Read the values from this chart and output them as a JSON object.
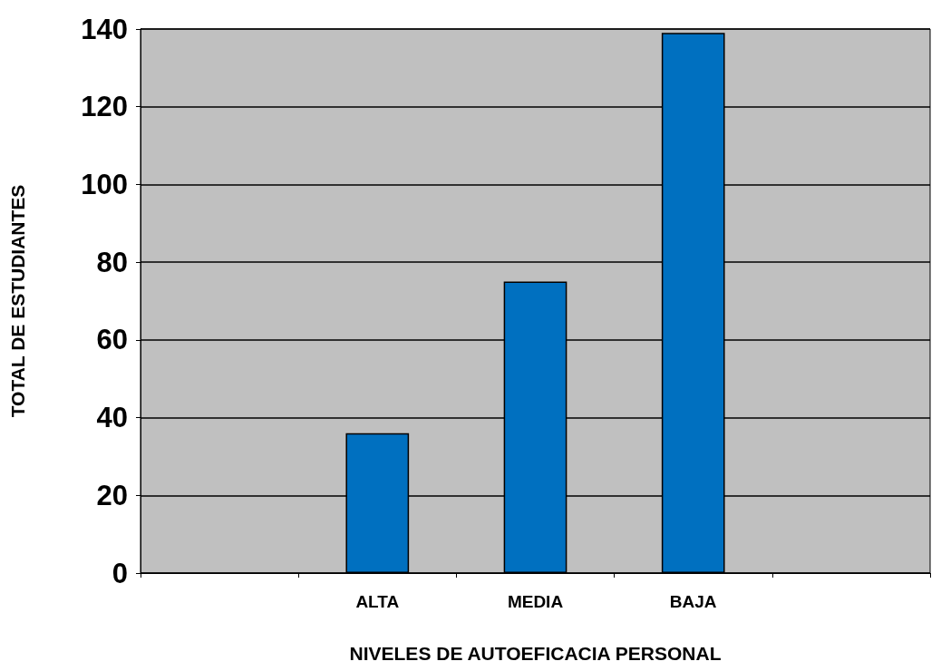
{
  "chart_data": {
    "type": "bar",
    "xlabel": "NIVELES DE AUTOEFICACIA PERSONAL",
    "ylabel": "TOTAL DE ESTUDIANTES",
    "categories": [
      null,
      "ALTA",
      "MEDIA",
      "BAJA",
      null
    ],
    "values": [
      null,
      36,
      75,
      139,
      null
    ],
    "color": "#0070c0",
    "ylim": [
      0,
      140
    ],
    "yticks": [
      0,
      20,
      40,
      60,
      80,
      100,
      120,
      140
    ],
    "grid": "y"
  }
}
